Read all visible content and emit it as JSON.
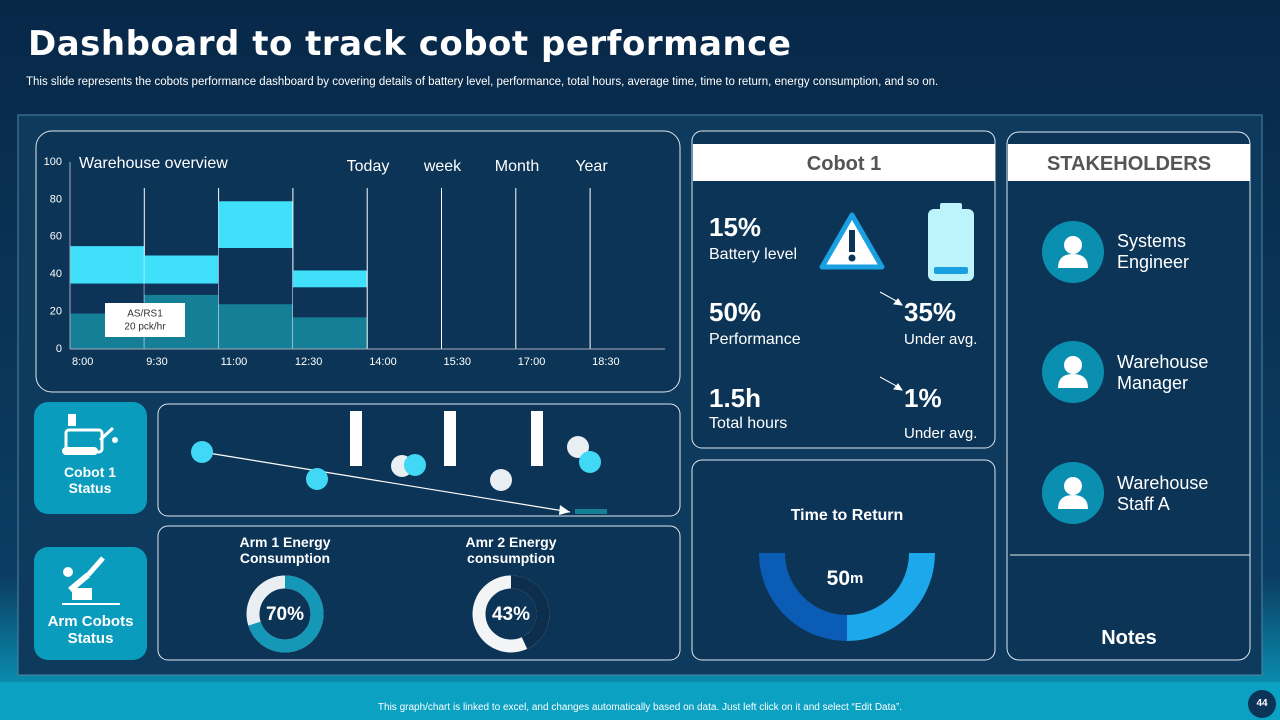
{
  "header": {
    "title": "Dashboard to track cobot performance",
    "subtitle": "This slide represents the cobots performance dashboard by covering details of battery level, performance, total hours, average time, time to return, energy consumption, and so on."
  },
  "chart_data": [
    {
      "type": "bar",
      "stacked": true,
      "title": "Warehouse overview",
      "tabs": [
        "Today",
        "week",
        "Month",
        "Year"
      ],
      "categories": [
        "8:00",
        "9:30",
        "11:00",
        "12:30",
        "14:00",
        "15:30",
        "17:00",
        "18:30"
      ],
      "series": [
        {
          "color": "#147f96",
          "values": [
            19,
            29,
            24,
            17,
            null,
            null,
            null,
            null
          ]
        },
        {
          "color": "#0d3358",
          "values": [
            16,
            6,
            30,
            16,
            null,
            null,
            null,
            null
          ]
        },
        {
          "color": "#40e0fb",
          "values": [
            20,
            15,
            25,
            9,
            null,
            null,
            null,
            null
          ]
        }
      ],
      "ylim": [
        0,
        100
      ],
      "yticks": [
        0,
        20,
        40,
        60,
        80,
        100
      ],
      "grid": false,
      "annotation": [
        "AS/RS1",
        "20 pck/hr"
      ]
    },
    {
      "type": "donut",
      "title": "Arm 1 Energy Consumption",
      "value": 70,
      "value_label": "70%",
      "color": "#1597b8",
      "rest_color": "#e8eef2"
    },
    {
      "type": "donut",
      "title": "Amr 2 Energy consumption",
      "value": 43,
      "value_label": "43%",
      "color": "#0d2f4d",
      "rest_color": "#f2f4f6"
    },
    {
      "type": "gauge",
      "title": "Time to Return",
      "value": 50,
      "unit": "m",
      "range": [
        0,
        100
      ],
      "color": "#0b5cb5",
      "rest_color": "#1ca8ea"
    }
  ],
  "status_tiles": [
    "Cobot 1 Status",
    "Arm Cobots Status"
  ],
  "cobot": {
    "title": "Cobot 1",
    "metrics": [
      {
        "value": "15%",
        "label": "Battery level"
      },
      {
        "value": "50%",
        "label": "Performance"
      },
      {
        "value": "1.5h",
        "label": "Total hours"
      }
    ],
    "comparisons": [
      {
        "value": "35%",
        "label": "Under avg."
      },
      {
        "value": "1%",
        "label": "Under avg."
      }
    ]
  },
  "stakeholders": {
    "title": "STAKEHOLDERS",
    "people": [
      "Systems Engineer",
      "Warehouse Manager",
      "Warehouse Staff A"
    ],
    "notes": "Notes"
  },
  "footer": "This graph/chart is linked to excel, and changes automatically based on data. Just left click on it and select “Edit Data”.",
  "page_number": "44"
}
